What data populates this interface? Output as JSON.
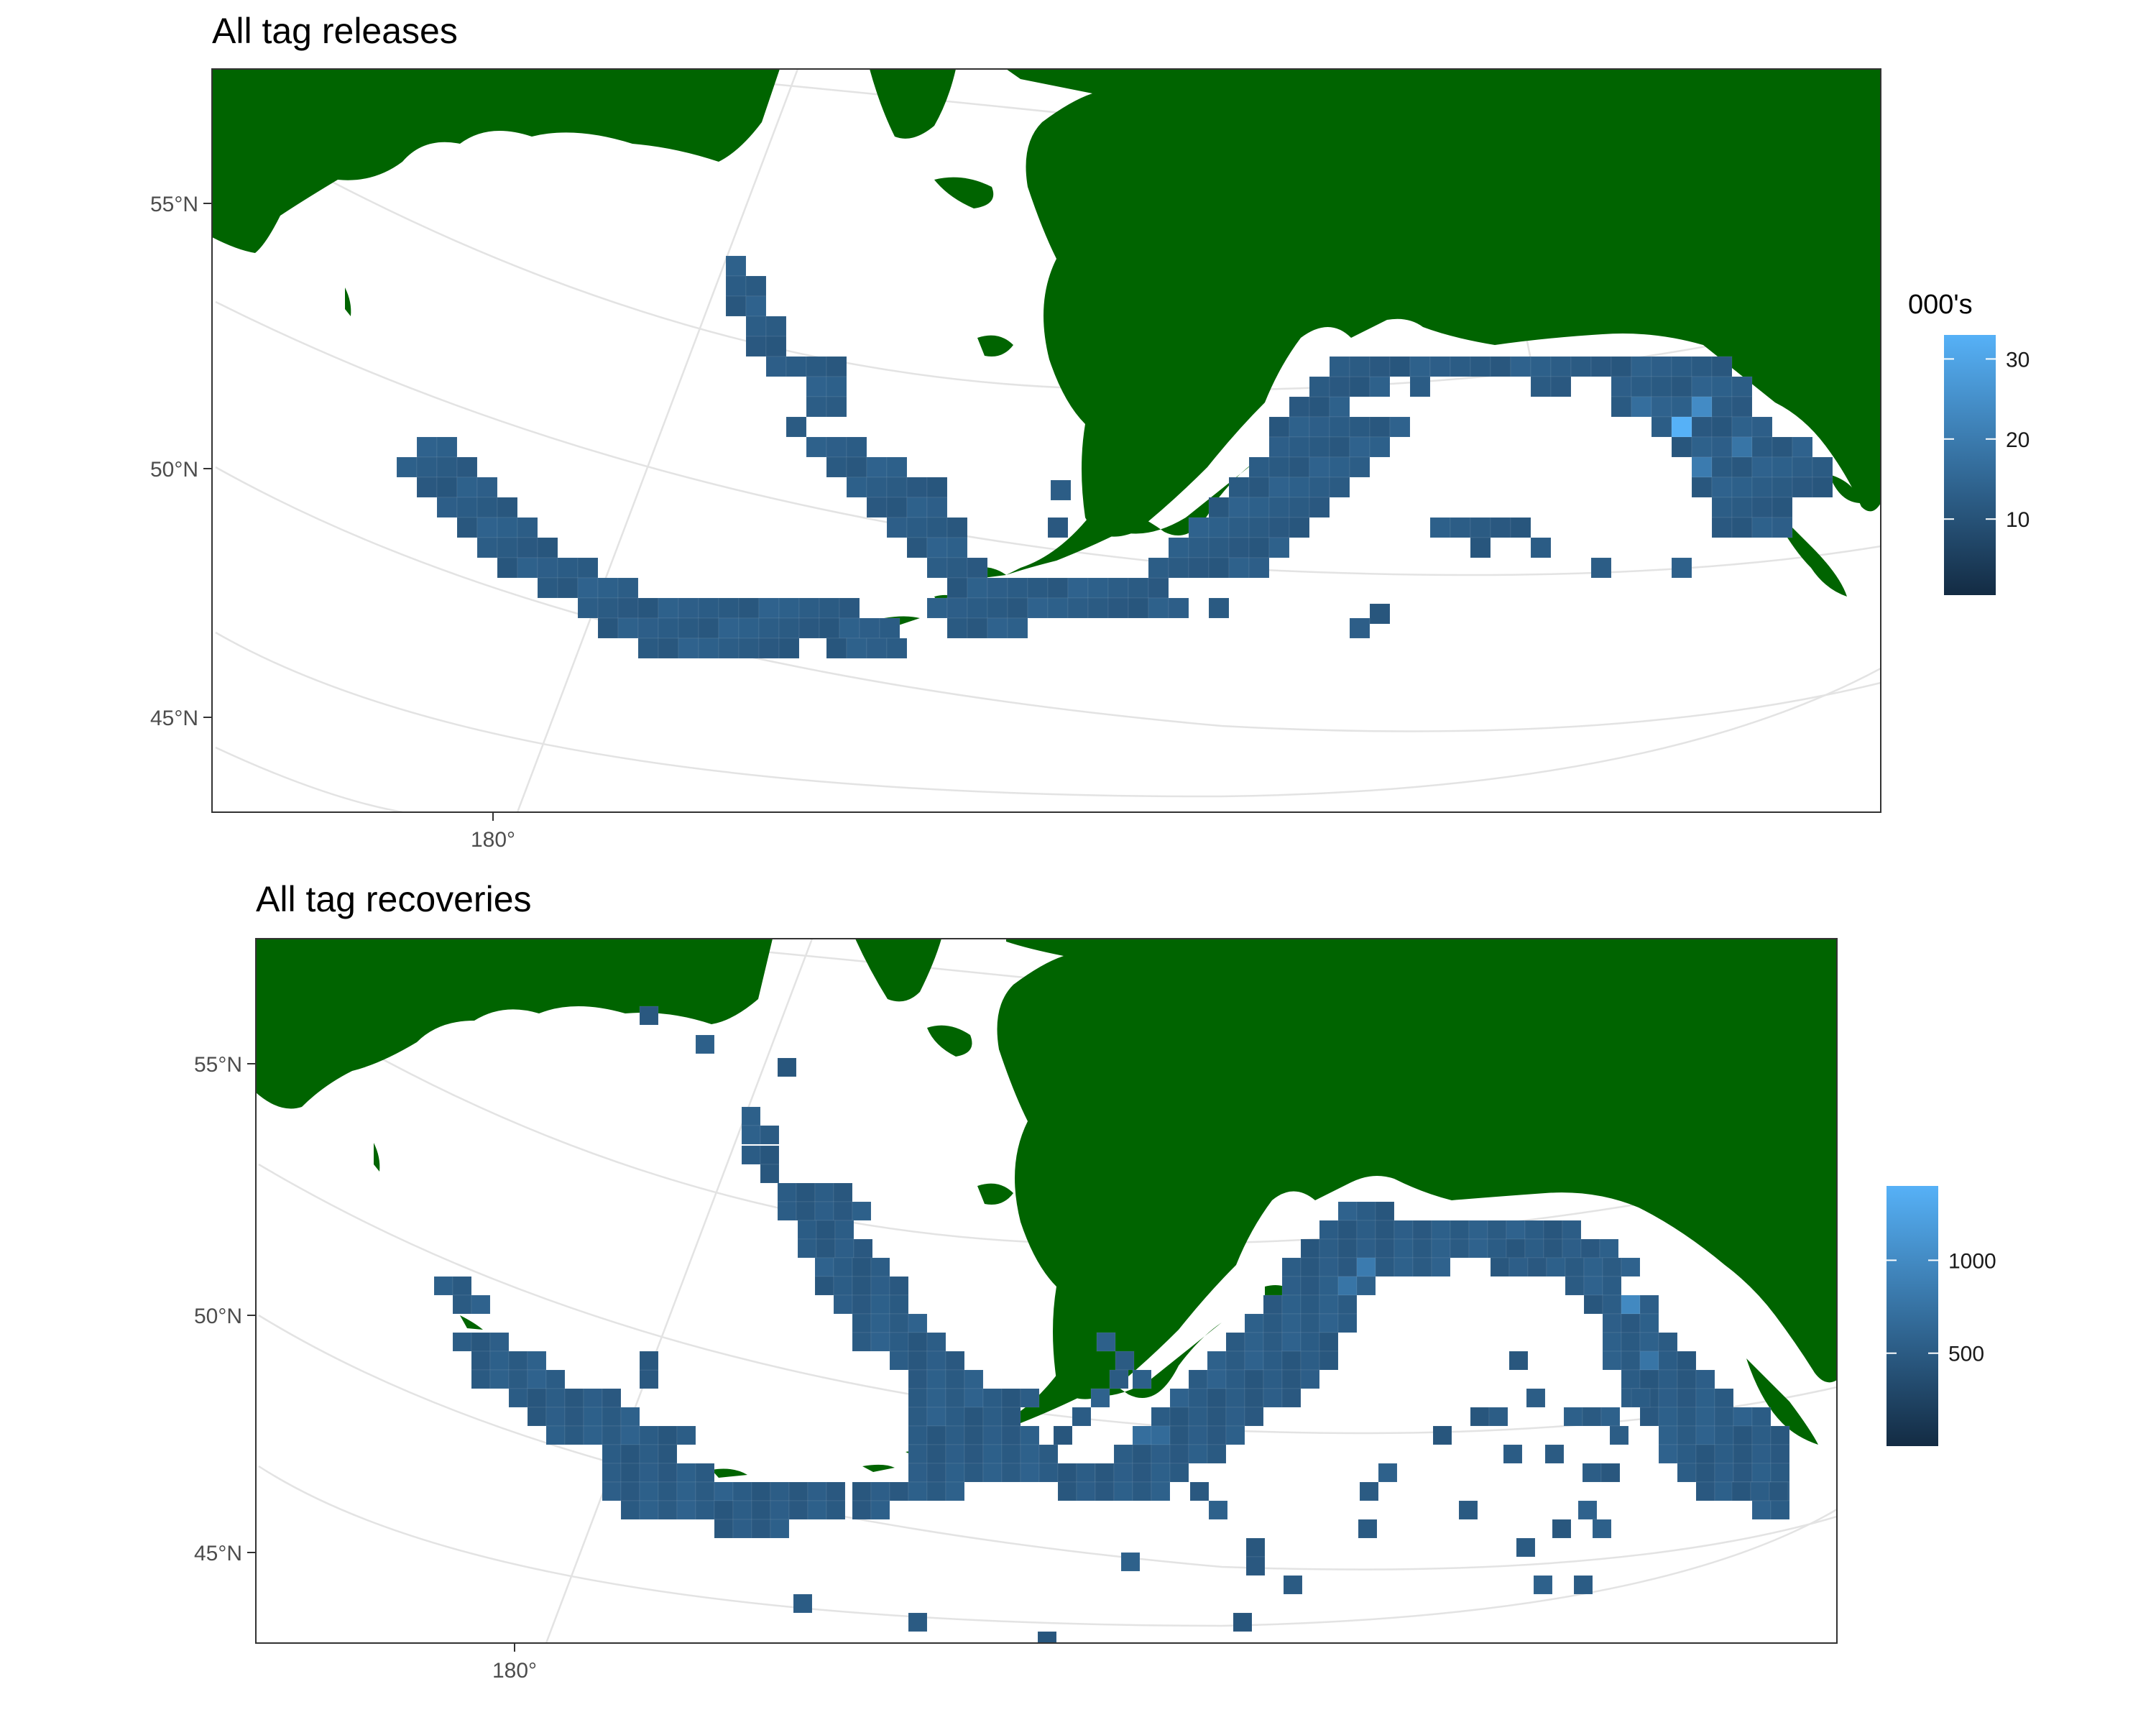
{
  "colors": {
    "land": "#006400",
    "graticule": "#e3e3e3",
    "frame": "#333333",
    "fill_low": "#132b43",
    "fill_high": "#56b1f7",
    "cell_base": "#3f5a75"
  },
  "panels": [
    {
      "title": "All tag releases",
      "y_ticks": [
        "55°N",
        "50°N",
        "45°N"
      ],
      "x_tick": "180°",
      "legend": {
        "title": "000's",
        "ticks": [
          "30",
          "20",
          "10"
        ],
        "range": [
          0.5,
          33
        ]
      }
    },
    {
      "title": "All tag recoveries",
      "y_ticks": [
        "55°N",
        "50°N",
        "45°N"
      ],
      "x_tick": "180°",
      "legend": {
        "title": "",
        "ticks": [
          "1000",
          "500"
        ],
        "range": [
          0,
          1400
        ]
      }
    }
  ]
}
